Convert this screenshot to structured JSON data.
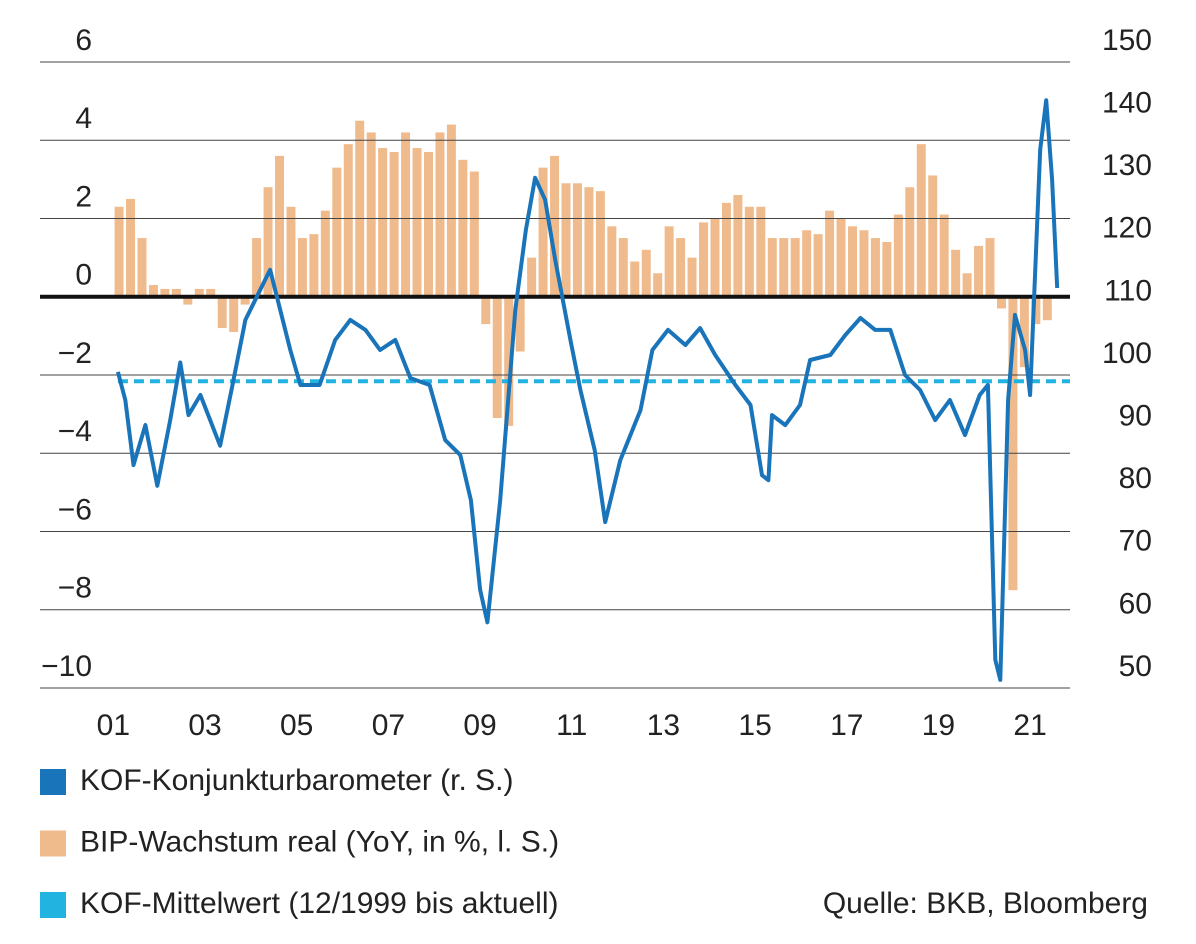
{
  "chart_data": {
    "type": "bar-line",
    "xlim": [
      1999.4,
      2021.87
    ],
    "xticks": [
      {
        "value": 2001,
        "label": "01"
      },
      {
        "value": 2003,
        "label": "03"
      },
      {
        "value": 2005,
        "label": "05"
      },
      {
        "value": 2007,
        "label": "07"
      },
      {
        "value": 2009,
        "label": "09"
      },
      {
        "value": 2011,
        "label": "11"
      },
      {
        "value": 2013,
        "label": "13"
      },
      {
        "value": 2015,
        "label": "15"
      },
      {
        "value": 2017,
        "label": "17"
      },
      {
        "value": 2019,
        "label": "19"
      },
      {
        "value": 2021,
        "label": "21"
      }
    ],
    "ylim": [
      -10,
      6
    ],
    "yticks": [
      {
        "value": -10,
        "label": "−10"
      },
      {
        "value": -8,
        "label": "−8"
      },
      {
        "value": -6,
        "label": "−6"
      },
      {
        "value": -4,
        "label": "−4"
      },
      {
        "value": -2,
        "label": "−2"
      },
      0,
      2,
      4,
      6
    ],
    "y2lim": [
      50,
      150
    ],
    "y2ticks": [
      50,
      60,
      70,
      80,
      90,
      100,
      110,
      120,
      130,
      140,
      150
    ],
    "grid": true,
    "series": [
      {
        "name": "KOF-Konjunkturbarometer (r. S.)",
        "color": "#1a74ba",
        "type": "line",
        "axis": "y2",
        "x": [
          2001.1,
          2001.26,
          2001.44,
          2001.7,
          2001.96,
          2002.24,
          2002.46,
          2002.64,
          2002.9,
          2003.33,
          2003.6,
          2003.88,
          2004.42,
          2004.86,
          2005.08,
          2005.5,
          2005.84,
          2006.17,
          2006.5,
          2006.82,
          2007.15,
          2007.48,
          2007.9,
          2008.24,
          2008.57,
          2008.8,
          2009.0,
          2009.16,
          2009.44,
          2009.77,
          2010.0,
          2010.2,
          2010.42,
          2010.64,
          2010.97,
          2011.19,
          2011.5,
          2011.73,
          2012.06,
          2012.5,
          2012.76,
          2013.1,
          2013.48,
          2013.8,
          2014.13,
          2014.57,
          2014.9,
          2015.15,
          2015.29,
          2015.37,
          2015.66,
          2015.98,
          2016.2,
          2016.64,
          2016.97,
          2017.3,
          2017.62,
          2017.95,
          2018.27,
          2018.6,
          2018.93,
          2019.25,
          2019.58,
          2019.9,
          2020.08,
          2020.24,
          2020.35,
          2020.52,
          2020.67,
          2020.89,
          2021.0,
          2021.22,
          2021.35,
          2021.48,
          2021.59
        ],
        "values": [
          100.5,
          96,
          85.6,
          92,
          82.3,
          92.8,
          102,
          93.6,
          96.8,
          88.7,
          98.4,
          108.8,
          116.8,
          104,
          98.4,
          98.4,
          105.6,
          108.8,
          107.2,
          104,
          105.6,
          99.5,
          98.4,
          89.6,
          87.2,
          80,
          65.7,
          60.5,
          80,
          110.4,
          123.2,
          131.5,
          128,
          118.4,
          105.6,
          97.6,
          88,
          76.5,
          86.4,
          94.4,
          104,
          107.2,
          104.8,
          107.5,
          103.2,
          98.4,
          95.2,
          84,
          83.2,
          93.6,
          92,
          95.2,
          102.4,
          103.2,
          106.4,
          109.1,
          107.2,
          107.2,
          100,
          97.6,
          92.8,
          96,
          90.4,
          96.8,
          98.4,
          54.5,
          51.3,
          96,
          109.6,
          104,
          96.8,
          136,
          143.9,
          131.2,
          113.9
        ]
      },
      {
        "name": "BIP-Wachstum real (YoY, in %, l. S.)",
        "color": "#f0bb8c",
        "type": "bar",
        "x": [
          2001.125,
          2001.375,
          2001.625,
          2001.875,
          2002.125,
          2002.375,
          2002.625,
          2002.875,
          2003.125,
          2003.375,
          2003.625,
          2003.875,
          2004.125,
          2004.375,
          2004.625,
          2004.875,
          2005.125,
          2005.375,
          2005.625,
          2005.875,
          2006.125,
          2006.375,
          2006.625,
          2006.875,
          2007.125,
          2007.375,
          2007.625,
          2007.875,
          2008.125,
          2008.375,
          2008.625,
          2008.875,
          2009.125,
          2009.375,
          2009.625,
          2009.875,
          2010.125,
          2010.375,
          2010.625,
          2010.875,
          2011.125,
          2011.375,
          2011.625,
          2011.875,
          2012.125,
          2012.375,
          2012.625,
          2012.875,
          2013.125,
          2013.375,
          2013.625,
          2013.875,
          2014.125,
          2014.375,
          2014.625,
          2014.875,
          2015.125,
          2015.375,
          2015.625,
          2015.875,
          2016.125,
          2016.375,
          2016.625,
          2016.875,
          2017.125,
          2017.375,
          2017.625,
          2017.875,
          2018.125,
          2018.375,
          2018.625,
          2018.875,
          2019.125,
          2019.375,
          2019.625,
          2019.875,
          2020.125,
          2020.375,
          2020.625,
          2020.875,
          2021.125,
          2021.375
        ],
        "values": [
          2.3,
          2.5,
          1.5,
          0.3,
          0.2,
          0.2,
          -0.2,
          0.2,
          0.2,
          -0.8,
          -0.9,
          -0.2,
          1.5,
          2.8,
          3.6,
          2.3,
          1.5,
          1.6,
          2.2,
          3.3,
          3.9,
          4.5,
          4.2,
          3.8,
          3.7,
          4.2,
          3.8,
          3.7,
          4.2,
          4.4,
          3.5,
          3.2,
          -0.7,
          -3.1,
          -3.3,
          -1.4,
          1.0,
          3.3,
          3.6,
          2.9,
          2.9,
          2.8,
          2.7,
          1.8,
          1.5,
          0.9,
          1.2,
          0.6,
          1.8,
          1.5,
          1.0,
          1.9,
          2.0,
          2.4,
          2.6,
          2.3,
          2.3,
          1.5,
          1.5,
          1.5,
          1.7,
          1.6,
          2.2,
          2.0,
          1.8,
          1.7,
          1.5,
          1.4,
          2.1,
          2.8,
          3.9,
          3.1,
          2.1,
          1.2,
          0.6,
          1.3,
          1.5,
          -0.3,
          -7.5,
          -1.8,
          -0.7,
          -0.6
        ]
      }
    ],
    "reference_line": {
      "name": "KOF-Mittelwert (12/1999 bis aktuell)",
      "color": "#22b3e0",
      "axis": "y2",
      "value": 99
    },
    "source": "Quelle: BKB, Bloomberg"
  }
}
